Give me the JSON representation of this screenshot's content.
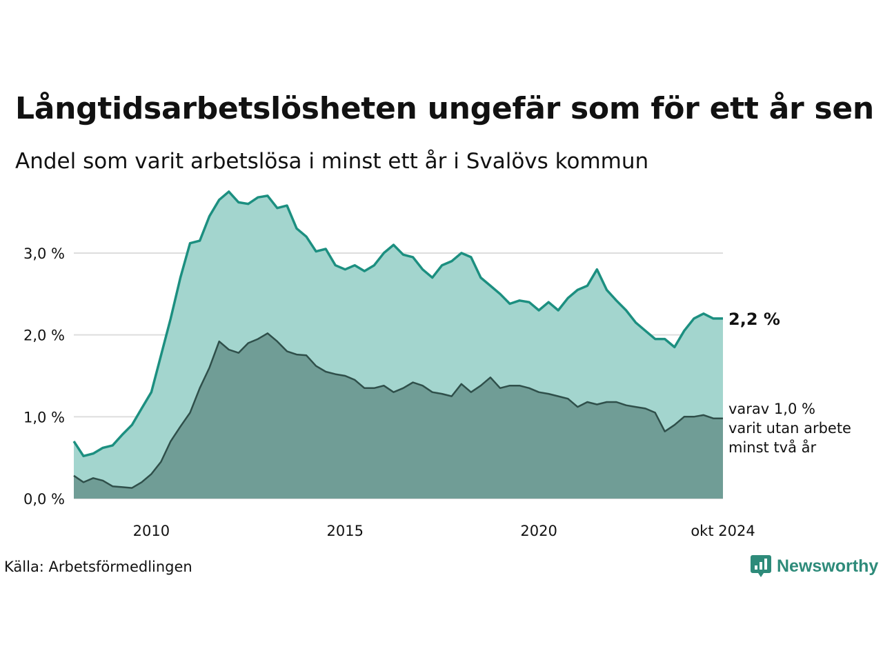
{
  "header": {
    "title": "Långtidsarbetslösheten ungefär som för ett år sen",
    "subtitle": "Andel som varit arbetslösa i minst ett år i Svalövs kommun"
  },
  "footer": {
    "source": "Källa: Arbetsförmedlingen",
    "logo_text": "Newsworthy",
    "logo_icon": "bar-chart-speech-bubble-icon"
  },
  "colors": {
    "main_line": "#1c8f80",
    "main_fill": "#a3d5ce",
    "sub_line": "#2f4f4a",
    "sub_fill": "#709d96",
    "grid": "#dddddd",
    "logo": "#2e8b7a"
  },
  "chart_data": {
    "type": "area",
    "x_unit": "year",
    "xlim": [
      2008.0,
      2024.75
    ],
    "ylim": [
      0,
      3.8
    ],
    "grid": "horizontal",
    "y_ticks": [
      {
        "value": 0,
        "label": "0,0 %"
      },
      {
        "value": 1,
        "label": "1,0 %"
      },
      {
        "value": 2,
        "label": "2,0 %"
      },
      {
        "value": 3,
        "label": "3,0 %"
      }
    ],
    "x_ticks": [
      {
        "value": 2010,
        "label": "2010"
      },
      {
        "value": 2015,
        "label": "2015"
      },
      {
        "value": 2020,
        "label": "2020"
      },
      {
        "value": 2024.75,
        "label": "okt 2024"
      }
    ],
    "annotations": {
      "last_value_label": "2,2 %",
      "sub_label_lines": [
        "varav 1,0 %",
        "varit utan arbete",
        "minst två år"
      ]
    },
    "series": [
      {
        "values": [
          [
            2008.0,
            0.7
          ],
          [
            2008.25,
            0.52
          ],
          [
            2008.5,
            0.55
          ],
          [
            2008.75,
            0.62
          ],
          [
            2009.0,
            0.65
          ],
          [
            2009.25,
            0.78
          ],
          [
            2009.5,
            0.9
          ],
          [
            2009.75,
            1.1
          ],
          [
            2010.0,
            1.3
          ],
          [
            2010.25,
            1.75
          ],
          [
            2010.5,
            2.2
          ],
          [
            2010.75,
            2.7
          ],
          [
            2011.0,
            3.12
          ],
          [
            2011.25,
            3.15
          ],
          [
            2011.5,
            3.45
          ],
          [
            2011.75,
            3.65
          ],
          [
            2012.0,
            3.75
          ],
          [
            2012.25,
            3.62
          ],
          [
            2012.5,
            3.6
          ],
          [
            2012.75,
            3.68
          ],
          [
            2013.0,
            3.7
          ],
          [
            2013.25,
            3.55
          ],
          [
            2013.5,
            3.58
          ],
          [
            2013.75,
            3.3
          ],
          [
            2014.0,
            3.2
          ],
          [
            2014.25,
            3.02
          ],
          [
            2014.5,
            3.05
          ],
          [
            2014.75,
            2.85
          ],
          [
            2015.0,
            2.8
          ],
          [
            2015.25,
            2.85
          ],
          [
            2015.5,
            2.78
          ],
          [
            2015.75,
            2.85
          ],
          [
            2016.0,
            3.0
          ],
          [
            2016.25,
            3.1
          ],
          [
            2016.5,
            2.98
          ],
          [
            2016.75,
            2.95
          ],
          [
            2017.0,
            2.8
          ],
          [
            2017.25,
            2.7
          ],
          [
            2017.5,
            2.85
          ],
          [
            2017.75,
            2.9
          ],
          [
            2018.0,
            3.0
          ],
          [
            2018.25,
            2.95
          ],
          [
            2018.5,
            2.7
          ],
          [
            2018.75,
            2.6
          ],
          [
            2019.0,
            2.5
          ],
          [
            2019.25,
            2.38
          ],
          [
            2019.5,
            2.42
          ],
          [
            2019.75,
            2.4
          ],
          [
            2020.0,
            2.3
          ],
          [
            2020.25,
            2.4
          ],
          [
            2020.5,
            2.3
          ],
          [
            2020.75,
            2.45
          ],
          [
            2021.0,
            2.55
          ],
          [
            2021.25,
            2.6
          ],
          [
            2021.5,
            2.8
          ],
          [
            2021.75,
            2.55
          ],
          [
            2022.0,
            2.42
          ],
          [
            2022.25,
            2.3
          ],
          [
            2022.5,
            2.15
          ],
          [
            2022.75,
            2.05
          ],
          [
            2023.0,
            1.95
          ],
          [
            2023.25,
            1.95
          ],
          [
            2023.5,
            1.85
          ],
          [
            2023.75,
            2.05
          ],
          [
            2024.0,
            2.2
          ],
          [
            2024.25,
            2.26
          ],
          [
            2024.5,
            2.2
          ],
          [
            2024.75,
            2.2
          ]
        ]
      },
      {
        "values": [
          [
            2008.0,
            0.28
          ],
          [
            2008.25,
            0.2
          ],
          [
            2008.5,
            0.25
          ],
          [
            2008.75,
            0.22
          ],
          [
            2009.0,
            0.15
          ],
          [
            2009.25,
            0.14
          ],
          [
            2009.5,
            0.13
          ],
          [
            2009.75,
            0.2
          ],
          [
            2010.0,
            0.3
          ],
          [
            2010.25,
            0.45
          ],
          [
            2010.5,
            0.7
          ],
          [
            2010.75,
            0.88
          ],
          [
            2011.0,
            1.05
          ],
          [
            2011.25,
            1.35
          ],
          [
            2011.5,
            1.6
          ],
          [
            2011.75,
            1.92
          ],
          [
            2012.0,
            1.82
          ],
          [
            2012.25,
            1.78
          ],
          [
            2012.5,
            1.9
          ],
          [
            2012.75,
            1.95
          ],
          [
            2013.0,
            2.02
          ],
          [
            2013.25,
            1.92
          ],
          [
            2013.5,
            1.8
          ],
          [
            2013.75,
            1.76
          ],
          [
            2014.0,
            1.75
          ],
          [
            2014.25,
            1.62
          ],
          [
            2014.5,
            1.55
          ],
          [
            2014.75,
            1.52
          ],
          [
            2015.0,
            1.5
          ],
          [
            2015.25,
            1.45
          ],
          [
            2015.5,
            1.35
          ],
          [
            2015.75,
            1.35
          ],
          [
            2016.0,
            1.38
          ],
          [
            2016.25,
            1.3
          ],
          [
            2016.5,
            1.35
          ],
          [
            2016.75,
            1.42
          ],
          [
            2017.0,
            1.38
          ],
          [
            2017.25,
            1.3
          ],
          [
            2017.5,
            1.28
          ],
          [
            2017.75,
            1.25
          ],
          [
            2018.0,
            1.4
          ],
          [
            2018.25,
            1.3
          ],
          [
            2018.5,
            1.38
          ],
          [
            2018.75,
            1.48
          ],
          [
            2019.0,
            1.35
          ],
          [
            2019.25,
            1.38
          ],
          [
            2019.5,
            1.38
          ],
          [
            2019.75,
            1.35
          ],
          [
            2020.0,
            1.3
          ],
          [
            2020.25,
            1.28
          ],
          [
            2020.5,
            1.25
          ],
          [
            2020.75,
            1.22
          ],
          [
            2021.0,
            1.12
          ],
          [
            2021.25,
            1.18
          ],
          [
            2021.5,
            1.15
          ],
          [
            2021.75,
            1.18
          ],
          [
            2022.0,
            1.18
          ],
          [
            2022.25,
            1.14
          ],
          [
            2022.5,
            1.12
          ],
          [
            2022.75,
            1.1
          ],
          [
            2023.0,
            1.05
          ],
          [
            2023.25,
            0.82
          ],
          [
            2023.5,
            0.9
          ],
          [
            2023.75,
            1.0
          ],
          [
            2024.0,
            1.0
          ],
          [
            2024.25,
            1.02
          ],
          [
            2024.5,
            0.98
          ],
          [
            2024.75,
            0.98
          ]
        ]
      }
    ]
  }
}
